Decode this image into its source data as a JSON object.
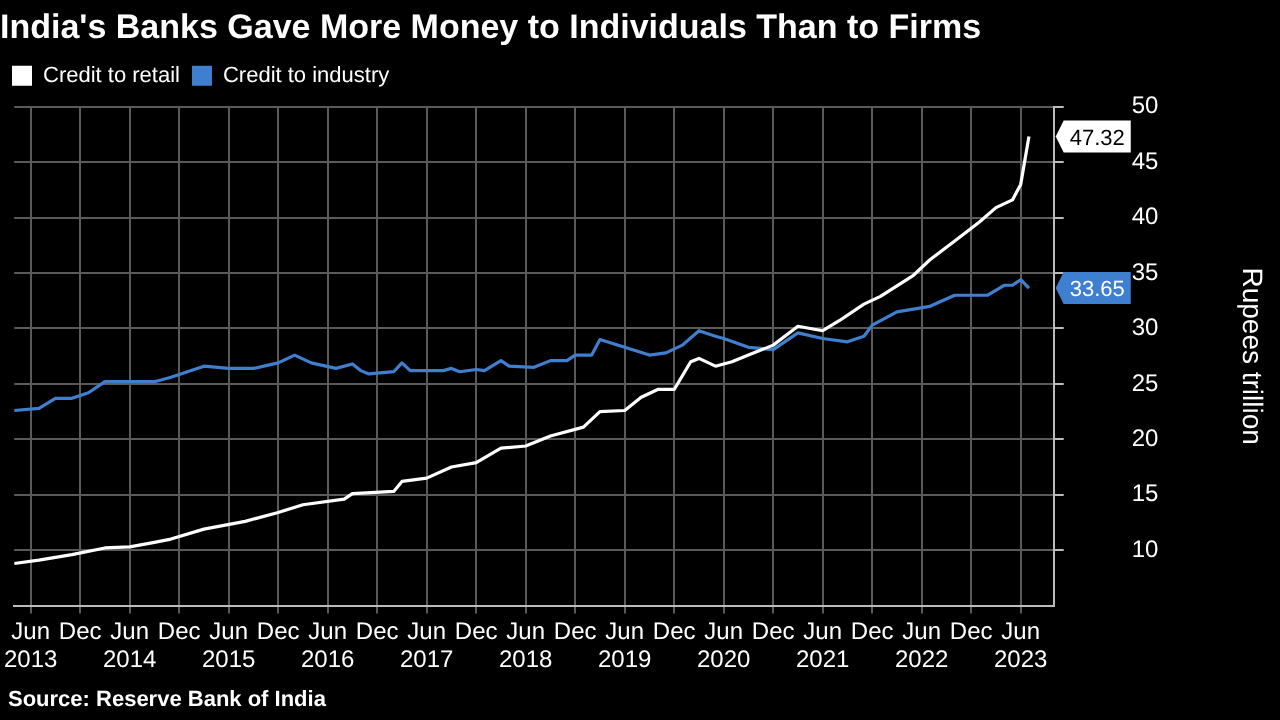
{
  "chart_data": {
    "type": "line",
    "title": "India's Banks Gave More Money to Individuals Than to Firms",
    "ylabel": "Rupees trillion",
    "legend": "top left",
    "grid": true,
    "marker": "none",
    "xlim": [
      "2013-04",
      "2023-10"
    ],
    "xticks": [
      {
        "value": "2013-06",
        "label": "Jun 2013"
      },
      {
        "value": "2013-12",
        "label": "Dec"
      },
      {
        "value": "2014-06",
        "label": "Jun 2014"
      },
      {
        "value": "2014-12",
        "label": "Dec"
      },
      {
        "value": "2015-06",
        "label": "Jun 2015"
      },
      {
        "value": "2015-12",
        "label": "Dec"
      },
      {
        "value": "2016-06",
        "label": "Jun 2016"
      },
      {
        "value": "2016-12",
        "label": "Dec"
      },
      {
        "value": "2017-06",
        "label": "Jun 2017"
      },
      {
        "value": "2017-12",
        "label": "Dec"
      },
      {
        "value": "2018-06",
        "label": "Jun 2018"
      },
      {
        "value": "2018-12",
        "label": "Dec"
      },
      {
        "value": "2019-06",
        "label": "Jun 2019"
      },
      {
        "value": "2019-12",
        "label": "Dec"
      },
      {
        "value": "2020-06",
        "label": "Jun 2020"
      },
      {
        "value": "2020-12",
        "label": "Dec"
      },
      {
        "value": "2021-06",
        "label": "Jun 2021"
      },
      {
        "value": "2021-12",
        "label": "Dec"
      },
      {
        "value": "2022-06",
        "label": "Jun 2022"
      },
      {
        "value": "2022-12",
        "label": "Dec"
      },
      {
        "value": "2023-06",
        "label": "Jun 2023"
      }
    ],
    "ylim": [
      5,
      50
    ],
    "yticks": [
      10,
      15,
      20,
      25,
      30,
      35,
      40,
      45,
      50
    ],
    "series": [
      {
        "name": "Credit to retail",
        "color": "#ffffff",
        "x": [
          "2013-04",
          "2013-07",
          "2013-11",
          "2014-03",
          "2014-06",
          "2014-09",
          "2014-11",
          "2015-03",
          "2015-08",
          "2015-12",
          "2016-03",
          "2016-08",
          "2016-09",
          "2017-02",
          "2017-03",
          "2017-06",
          "2017-09",
          "2017-12",
          "2018-03",
          "2018-06",
          "2018-09",
          "2019-01",
          "2019-03",
          "2019-06",
          "2019-08",
          "2019-10",
          "2019-12",
          "2020-02",
          "2020-03",
          "2020-05",
          "2020-07",
          "2020-09",
          "2020-12",
          "2021-03",
          "2021-06",
          "2021-08",
          "2021-11",
          "2022-01",
          "2022-05",
          "2022-07",
          "2022-10",
          "2023-01",
          "2023-03",
          "2023-05",
          "2023-06",
          "2023-07"
        ],
        "values": [
          8.8,
          9.1,
          9.6,
          10.2,
          10.3,
          10.7,
          11.0,
          11.9,
          12.6,
          13.4,
          14.1,
          14.6,
          15.1,
          15.3,
          16.2,
          16.5,
          17.5,
          17.9,
          19.2,
          19.4,
          20.3,
          21.1,
          22.5,
          22.6,
          23.8,
          24.5,
          24.5,
          27.0,
          27.3,
          26.6,
          27.0,
          27.6,
          28.5,
          30.2,
          29.8,
          30.7,
          32.2,
          32.9,
          34.8,
          36.2,
          37.9,
          39.6,
          40.9,
          41.6,
          43.0,
          47.32
        ],
        "value_labels": [
          null,
          null,
          null,
          null,
          null,
          null,
          null,
          null,
          null,
          null,
          null,
          null,
          null,
          null,
          null,
          null,
          null,
          null,
          null,
          null,
          null,
          null,
          null,
          null,
          null,
          null,
          null,
          null,
          null,
          null,
          null,
          null,
          null,
          null,
          null,
          null,
          null,
          null,
          null,
          null,
          null,
          null,
          null,
          null,
          null,
          "47.32"
        ]
      },
      {
        "name": "Credit to industry",
        "color": "#3f7fd0",
        "x": [
          "2013-04",
          "2013-07",
          "2013-09",
          "2013-11",
          "2014-01",
          "2014-03",
          "2014-06",
          "2014-09",
          "2014-11",
          "2015-01",
          "2015-03",
          "2015-06",
          "2015-09",
          "2015-12",
          "2016-02",
          "2016-04",
          "2016-07",
          "2016-09",
          "2016-10",
          "2016-11",
          "2017-02",
          "2017-03",
          "2017-04",
          "2017-08",
          "2017-09",
          "2017-10",
          "2017-12",
          "2018-01",
          "2018-03",
          "2018-04",
          "2018-07",
          "2018-09",
          "2018-11",
          "2018-12",
          "2019-02",
          "2019-03",
          "2019-06",
          "2019-09",
          "2019-11",
          "2020-01",
          "2020-03",
          "2020-05",
          "2020-06",
          "2020-09",
          "2020-12",
          "2021-03",
          "2021-06",
          "2021-09",
          "2021-11",
          "2021-12",
          "2022-03",
          "2022-07",
          "2022-10",
          "2023-02",
          "2023-04",
          "2023-05",
          "2023-06",
          "2023-07"
        ],
        "values": [
          22.6,
          22.8,
          23.7,
          23.7,
          24.2,
          25.2,
          25.2,
          25.2,
          25.6,
          26.1,
          26.6,
          26.4,
          26.4,
          26.9,
          27.6,
          26.9,
          26.4,
          26.8,
          26.2,
          25.9,
          26.1,
          26.9,
          26.2,
          26.2,
          26.4,
          26.1,
          26.3,
          26.2,
          27.1,
          26.6,
          26.5,
          27.1,
          27.1,
          27.6,
          27.6,
          29.0,
          28.3,
          27.6,
          27.8,
          28.5,
          29.8,
          29.3,
          29.1,
          28.3,
          28.1,
          29.6,
          29.1,
          28.8,
          29.3,
          30.3,
          31.5,
          32.0,
          33.0,
          33.0,
          33.9,
          33.9,
          34.4,
          33.65
        ],
        "value_labels": [
          null,
          null,
          null,
          null,
          null,
          null,
          null,
          null,
          null,
          null,
          null,
          null,
          null,
          null,
          null,
          null,
          null,
          null,
          null,
          null,
          null,
          null,
          null,
          null,
          null,
          null,
          null,
          null,
          null,
          null,
          null,
          null,
          null,
          null,
          null,
          null,
          null,
          null,
          null,
          null,
          null,
          null,
          null,
          null,
          null,
          null,
          null,
          null,
          null,
          null,
          null,
          null,
          null,
          null,
          null,
          null,
          null,
          "33.65"
        ]
      }
    ],
    "annotations": [
      "Source: Reserve Bank of India"
    ]
  }
}
